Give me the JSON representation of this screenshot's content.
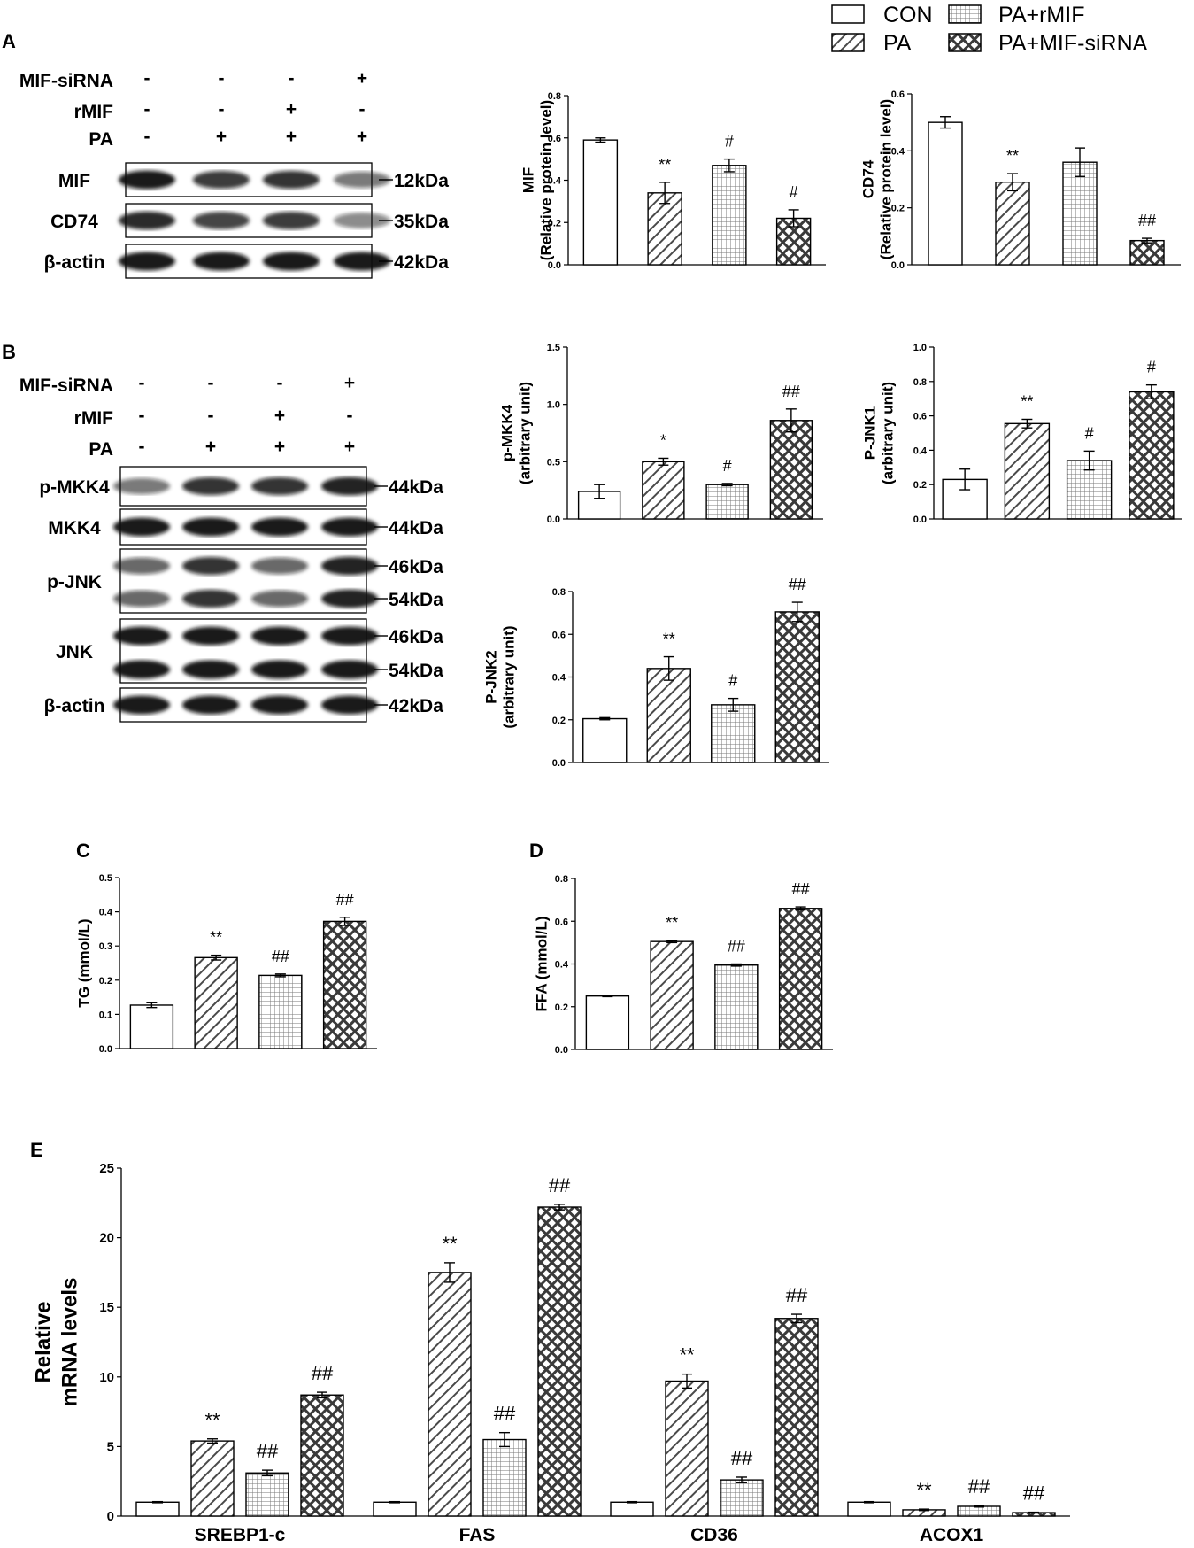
{
  "group_patterns": {
    "CON": "open",
    "PA": "diag",
    "PA+rMIF": "grid",
    "PA+MIF-siRNA": "cross"
  },
  "legend": [
    "CON",
    "PA+rMIF",
    "PA",
    "PA+MIF-siRNA"
  ],
  "panel_labels": [
    "A",
    "B",
    "C",
    "D",
    "E"
  ],
  "blots": [
    {
      "treatments": [
        {
          "name": "MIF-siRNA",
          "signs": [
            "-",
            "-",
            "-",
            "+"
          ]
        },
        {
          "name": "rMIF",
          "signs": [
            "-",
            "-",
            "+",
            "-"
          ]
        },
        {
          "name": "PA",
          "signs": [
            "-",
            "+",
            "+",
            "+"
          ]
        }
      ],
      "bands": [
        {
          "name": "MIF",
          "kda": [
            "12kDa"
          ]
        },
        {
          "name": "CD74",
          "kda": [
            "35kDa"
          ]
        },
        {
          "name": "β-actin",
          "kda": [
            "42kDa"
          ]
        }
      ]
    },
    {
      "treatments": [
        {
          "name": "MIF-siRNA",
          "signs": [
            "-",
            "-",
            "-",
            "+"
          ]
        },
        {
          "name": "rMIF",
          "signs": [
            "-",
            "-",
            "+",
            "-"
          ]
        },
        {
          "name": "PA",
          "signs": [
            "-",
            "+",
            "+",
            "+"
          ]
        }
      ],
      "bands": [
        {
          "name": "p-MKK4",
          "kda": [
            "44kDa"
          ]
        },
        {
          "name": "MKK4",
          "kda": [
            "44kDa"
          ]
        },
        {
          "name": "p-JNK",
          "kda": [
            "46kDa",
            "54kDa"
          ]
        },
        {
          "name": "JNK",
          "kda": [
            "46kDa",
            "54kDa"
          ]
        },
        {
          "name": "β-actin",
          "kda": [
            "42kDa"
          ]
        }
      ]
    }
  ],
  "chart_data": [
    {
      "type": "bar",
      "id": "mif",
      "categories": [
        "CON",
        "PA",
        "PA+rMIF",
        "PA+MIF-siRNA"
      ],
      "values": [
        0.59,
        0.34,
        0.47,
        0.22
      ],
      "errors": [
        0.01,
        0.05,
        0.03,
        0.04
      ],
      "annotations": [
        "",
        "**",
        "#",
        "#"
      ],
      "ylabel": [
        "MIF",
        "(Relative protein level)"
      ],
      "ylim": [
        0,
        0.8
      ],
      "yticks": [
        "0.0",
        "0.2",
        "0.4",
        "0.6",
        "0.8"
      ]
    },
    {
      "type": "bar",
      "id": "cd74",
      "categories": [
        "CON",
        "PA",
        "PA+rMIF",
        "PA+MIF-siRNA"
      ],
      "values": [
        0.5,
        0.29,
        0.36,
        0.085
      ],
      "errors": [
        0.02,
        0.03,
        0.05,
        0.008
      ],
      "annotations": [
        "",
        "**",
        "",
        "##"
      ],
      "ylabel": [
        "CD74",
        "(Relative protein level)"
      ],
      "ylim": [
        0,
        0.6
      ],
      "yticks": [
        "0.0",
        "0.2",
        "0.4",
        "0.6"
      ]
    },
    {
      "type": "bar",
      "id": "pmkk4",
      "categories": [
        "CON",
        "PA",
        "PA+rMIF",
        "PA+MIF-siRNA"
      ],
      "values": [
        0.24,
        0.5,
        0.3,
        0.86
      ],
      "errors": [
        0.06,
        0.03,
        0.01,
        0.1
      ],
      "annotations": [
        "",
        "*",
        "#",
        "##"
      ],
      "ylabel": [
        "p-MKK4",
        "(arbitrary unit)"
      ],
      "ylim": [
        0,
        1.5
      ],
      "yticks": [
        "0.0",
        "0.5",
        "1.0",
        "1.5"
      ]
    },
    {
      "type": "bar",
      "id": "pjnk1",
      "categories": [
        "CON",
        "PA",
        "PA+rMIF",
        "PA+MIF-siRNA"
      ],
      "values": [
        0.23,
        0.555,
        0.34,
        0.74
      ],
      "errors": [
        0.06,
        0.025,
        0.055,
        0.04
      ],
      "annotations": [
        "",
        "**",
        "#",
        "#"
      ],
      "ylabel": [
        "P-JNK1",
        "(arbitrary unit)"
      ],
      "ylim": [
        0,
        1.0
      ],
      "yticks": [
        "0.0",
        "0.2",
        "0.4",
        "0.6",
        "0.8",
        "1.0"
      ]
    },
    {
      "type": "bar",
      "id": "pjnk2",
      "categories": [
        "CON",
        "PA",
        "PA+rMIF",
        "PA+MIF-siRNA"
      ],
      "values": [
        0.205,
        0.44,
        0.27,
        0.705
      ],
      "errors": [
        0.005,
        0.055,
        0.03,
        0.045
      ],
      "annotations": [
        "",
        "**",
        "#",
        "##"
      ],
      "ylabel": [
        "P-JNK2",
        "(arbitrary unit)"
      ],
      "ylim": [
        0,
        0.8
      ],
      "yticks": [
        "0.0",
        "0.2",
        "0.4",
        "0.6",
        "0.8"
      ]
    },
    {
      "type": "bar",
      "id": "tg",
      "categories": [
        "CON",
        "PA",
        "PA+rMIF",
        "PA+MIF-siRNA"
      ],
      "values": [
        0.127,
        0.266,
        0.214,
        0.372
      ],
      "errors": [
        0.007,
        0.007,
        0.004,
        0.012
      ],
      "annotations": [
        "",
        "**",
        "##",
        "##"
      ],
      "ylabel": [
        "TG (mmol/L)"
      ],
      "ylim": [
        0,
        0.5
      ],
      "yticks": [
        "0.0",
        "0.1",
        "0.2",
        "0.3",
        "0.4",
        "0.5"
      ]
    },
    {
      "type": "bar",
      "id": "ffa",
      "categories": [
        "CON",
        "PA",
        "PA+rMIF",
        "PA+MIF-siRNA"
      ],
      "values": [
        0.25,
        0.505,
        0.395,
        0.66
      ],
      "errors": [
        0.003,
        0.005,
        0.005,
        0.007
      ],
      "annotations": [
        "",
        "**",
        "##",
        "##"
      ],
      "ylabel": [
        "FFA (mmol/L)"
      ],
      "ylim": [
        0,
        0.8
      ],
      "yticks": [
        "0.0",
        "0.2",
        "0.4",
        "0.6",
        "0.8"
      ]
    },
    {
      "type": "bar",
      "id": "mrna",
      "categories": [
        "SREBP1-c",
        "FAS",
        "CD36",
        "ACOX1"
      ],
      "series": [
        {
          "name": "CON",
          "values": [
            1.0,
            1.0,
            1.0,
            1.0
          ],
          "errors": [
            0.04,
            0.04,
            0.04,
            0.04
          ],
          "annotations": [
            "",
            "",
            "",
            ""
          ]
        },
        {
          "name": "PA",
          "values": [
            5.4,
            17.5,
            9.7,
            0.45
          ],
          "errors": [
            0.15,
            0.7,
            0.5,
            0.05
          ],
          "annotations": [
            "**",
            "**",
            "**",
            "**"
          ]
        },
        {
          "name": "PA+rMIF",
          "values": [
            3.1,
            5.5,
            2.6,
            0.7
          ],
          "errors": [
            0.2,
            0.5,
            0.2,
            0.05
          ],
          "annotations": [
            "##",
            "##",
            "##",
            "##"
          ]
        },
        {
          "name": "PA+MIF-siRNA",
          "values": [
            8.7,
            22.2,
            14.2,
            0.25
          ],
          "errors": [
            0.2,
            0.2,
            0.3,
            0.03
          ],
          "annotations": [
            "##",
            "##",
            "##",
            "##"
          ]
        }
      ],
      "ylabel": [
        "Relative",
        "mRNA levels"
      ],
      "ylim": [
        0,
        25
      ],
      "yticks": [
        "0",
        "5",
        "10",
        "15",
        "20",
        "25"
      ]
    }
  ]
}
